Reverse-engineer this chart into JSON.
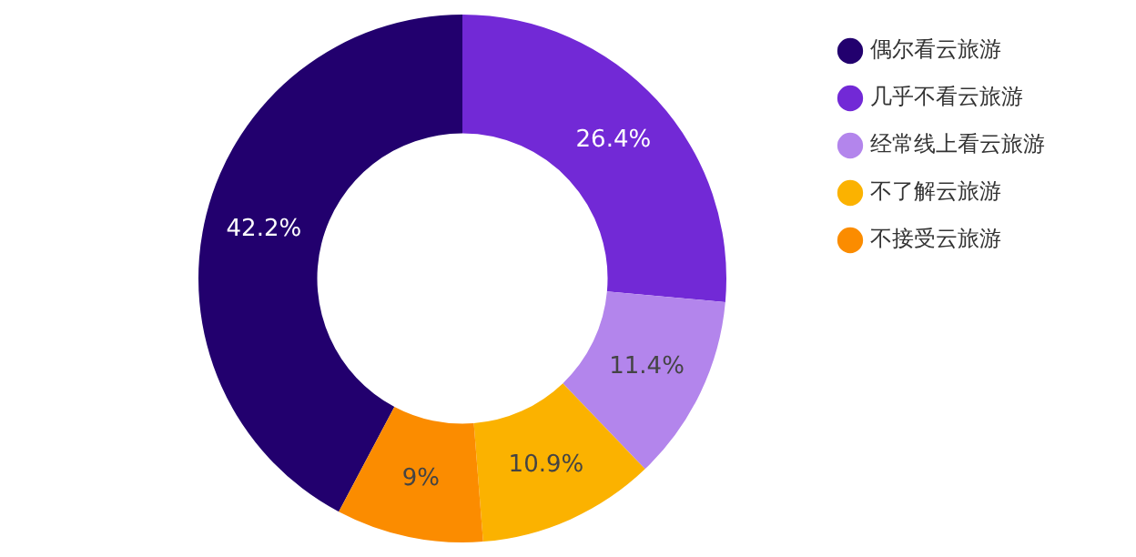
{
  "chart_data": {
    "type": "donut",
    "categories": [
      "偶尔看云旅游",
      "几乎不看云旅游",
      "经常线上看云旅游",
      "不了解云旅游",
      "不接受云旅游"
    ],
    "values": [
      42.2,
      26.4,
      11.4,
      10.9,
      9
    ],
    "colors": [
      "#22006e",
      "#7229d6",
      "#b385ec",
      "#fbb200",
      "#fb8c00"
    ],
    "value_labels": [
      "42.2%",
      "26.4%",
      "11.4%",
      "10.9%",
      "9%"
    ],
    "legend": "right"
  }
}
